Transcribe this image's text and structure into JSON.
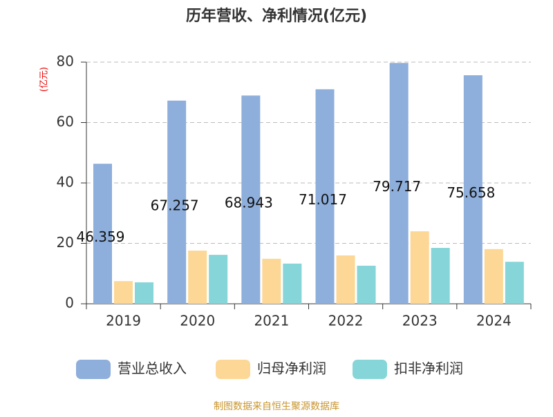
{
  "chart_data": {
    "type": "bar",
    "title": "历年营收、净利情况(亿元)",
    "y_label": "(亿元)",
    "categories": [
      "2019",
      "2020",
      "2021",
      "2022",
      "2023",
      "2024"
    ],
    "series": [
      {
        "name": "营业总收入",
        "color": "#8eaedb",
        "values": [
          46.359,
          67.257,
          68.943,
          71.017,
          79.717,
          75.658
        ],
        "show_labels": true
      },
      {
        "name": "归母净利润",
        "color": "#fdd796",
        "values": [
          7.5,
          17.6,
          14.9,
          16.0,
          24.0,
          18.1
        ]
      },
      {
        "name": "扣非净利润",
        "color": "#86d5d8",
        "values": [
          7.1,
          16.2,
          13.3,
          12.6,
          18.5,
          13.9
        ]
      }
    ],
    "ylim": [
      0,
      80
    ],
    "yticks": [
      0,
      20,
      40,
      60,
      80
    ],
    "grid": true,
    "legend": "bottom",
    "source": "制图数据来自恒生聚源数据库"
  }
}
